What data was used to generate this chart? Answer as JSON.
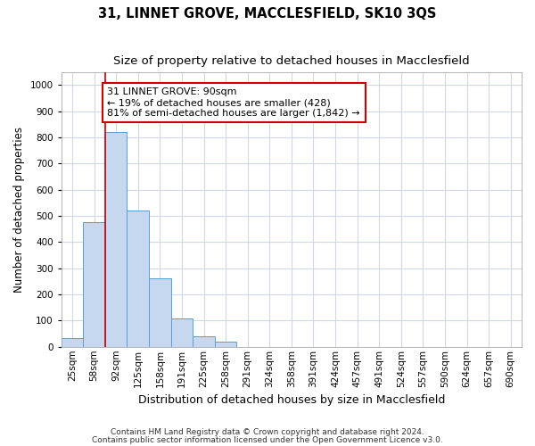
{
  "title": "31, LINNET GROVE, MACCLESFIELD, SK10 3QS",
  "subtitle": "Size of property relative to detached houses in Macclesfield",
  "xlabel": "Distribution of detached houses by size in Macclesfield",
  "ylabel": "Number of detached properties",
  "bar_labels": [
    "25sqm",
    "58sqm",
    "92sqm",
    "125sqm",
    "158sqm",
    "191sqm",
    "225sqm",
    "258sqm",
    "291sqm",
    "324sqm",
    "358sqm",
    "391sqm",
    "424sqm",
    "457sqm",
    "491sqm",
    "524sqm",
    "557sqm",
    "590sqm",
    "624sqm",
    "657sqm",
    "690sqm"
  ],
  "bar_values": [
    32,
    478,
    820,
    520,
    262,
    110,
    40,
    20,
    0,
    0,
    0,
    0,
    0,
    0,
    0,
    0,
    0,
    0,
    0,
    0,
    0
  ],
  "bar_color": "#c5d8f0",
  "bar_edge_color": "#5a9fd4",
  "vline_color": "#cc0000",
  "annotation_line1": "31 LINNET GROVE: 90sqm",
  "annotation_line2": "← 19% of detached houses are smaller (428)",
  "annotation_line3": "81% of semi-detached houses are larger (1,842) →",
  "annotation_box_facecolor": "#ffffff",
  "annotation_box_edgecolor": "#cc0000",
  "ylim": [
    0,
    1050
  ],
  "yticks": [
    0,
    100,
    200,
    300,
    400,
    500,
    600,
    700,
    800,
    900,
    1000
  ],
  "grid_color": "#d0d8e8",
  "footnote1": "Contains HM Land Registry data © Crown copyright and database right 2024.",
  "footnote2": "Contains public sector information licensed under the Open Government Licence v3.0.",
  "title_fontsize": 10.5,
  "subtitle_fontsize": 9.5,
  "tick_fontsize": 7.5,
  "ylabel_fontsize": 8.5,
  "xlabel_fontsize": 9,
  "annotation_fontsize": 8,
  "footnote_fontsize": 6.5
}
